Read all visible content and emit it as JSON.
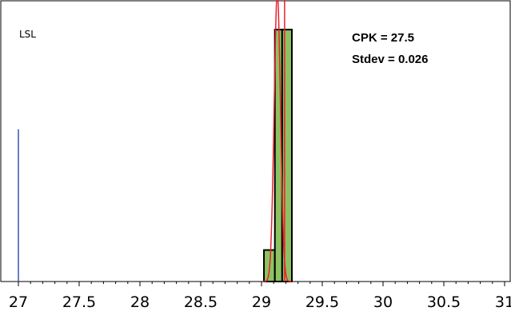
{
  "chart_data": {
    "type": "bar",
    "title": "",
    "xlabel": "",
    "ylabel": "",
    "xlim": [
      27,
      31
    ],
    "ylim": [
      0,
      1
    ],
    "x_ticks": [
      27,
      27.5,
      28,
      28.5,
      29,
      29.5,
      30,
      30.5,
      31
    ],
    "x_tick_labels": [
      "27",
      "27.5",
      "28",
      "28.5",
      "29",
      "29.5",
      "30",
      "30.5",
      "31"
    ],
    "bins": [
      {
        "start": 29.02,
        "end": 29.11,
        "value": 0.12
      },
      {
        "start": 29.11,
        "end": 29.17,
        "value": 0.96
      },
      {
        "start": 29.17,
        "end": 29.25,
        "value": 0.96
      }
    ],
    "lsl": {
      "label": "LSL",
      "value": 27.0,
      "level": 0.58
    },
    "annotations": [
      {
        "id": "cpk",
        "text": "CPK = 27.5"
      },
      {
        "id": "stdev",
        "text": "Stdev = 0.026"
      }
    ],
    "distribution_curve": {
      "mean": 29.13,
      "stdev": 0.026,
      "peak_height": 1.1,
      "secondary_line_x": 29.19
    },
    "colors": {
      "bar_fill": "#8dc262",
      "bar_stroke": "#000000",
      "lsl_line": "#3b55b5",
      "curve": "#e8222e",
      "frame": "#000000"
    },
    "grid": false,
    "legend": "none"
  }
}
